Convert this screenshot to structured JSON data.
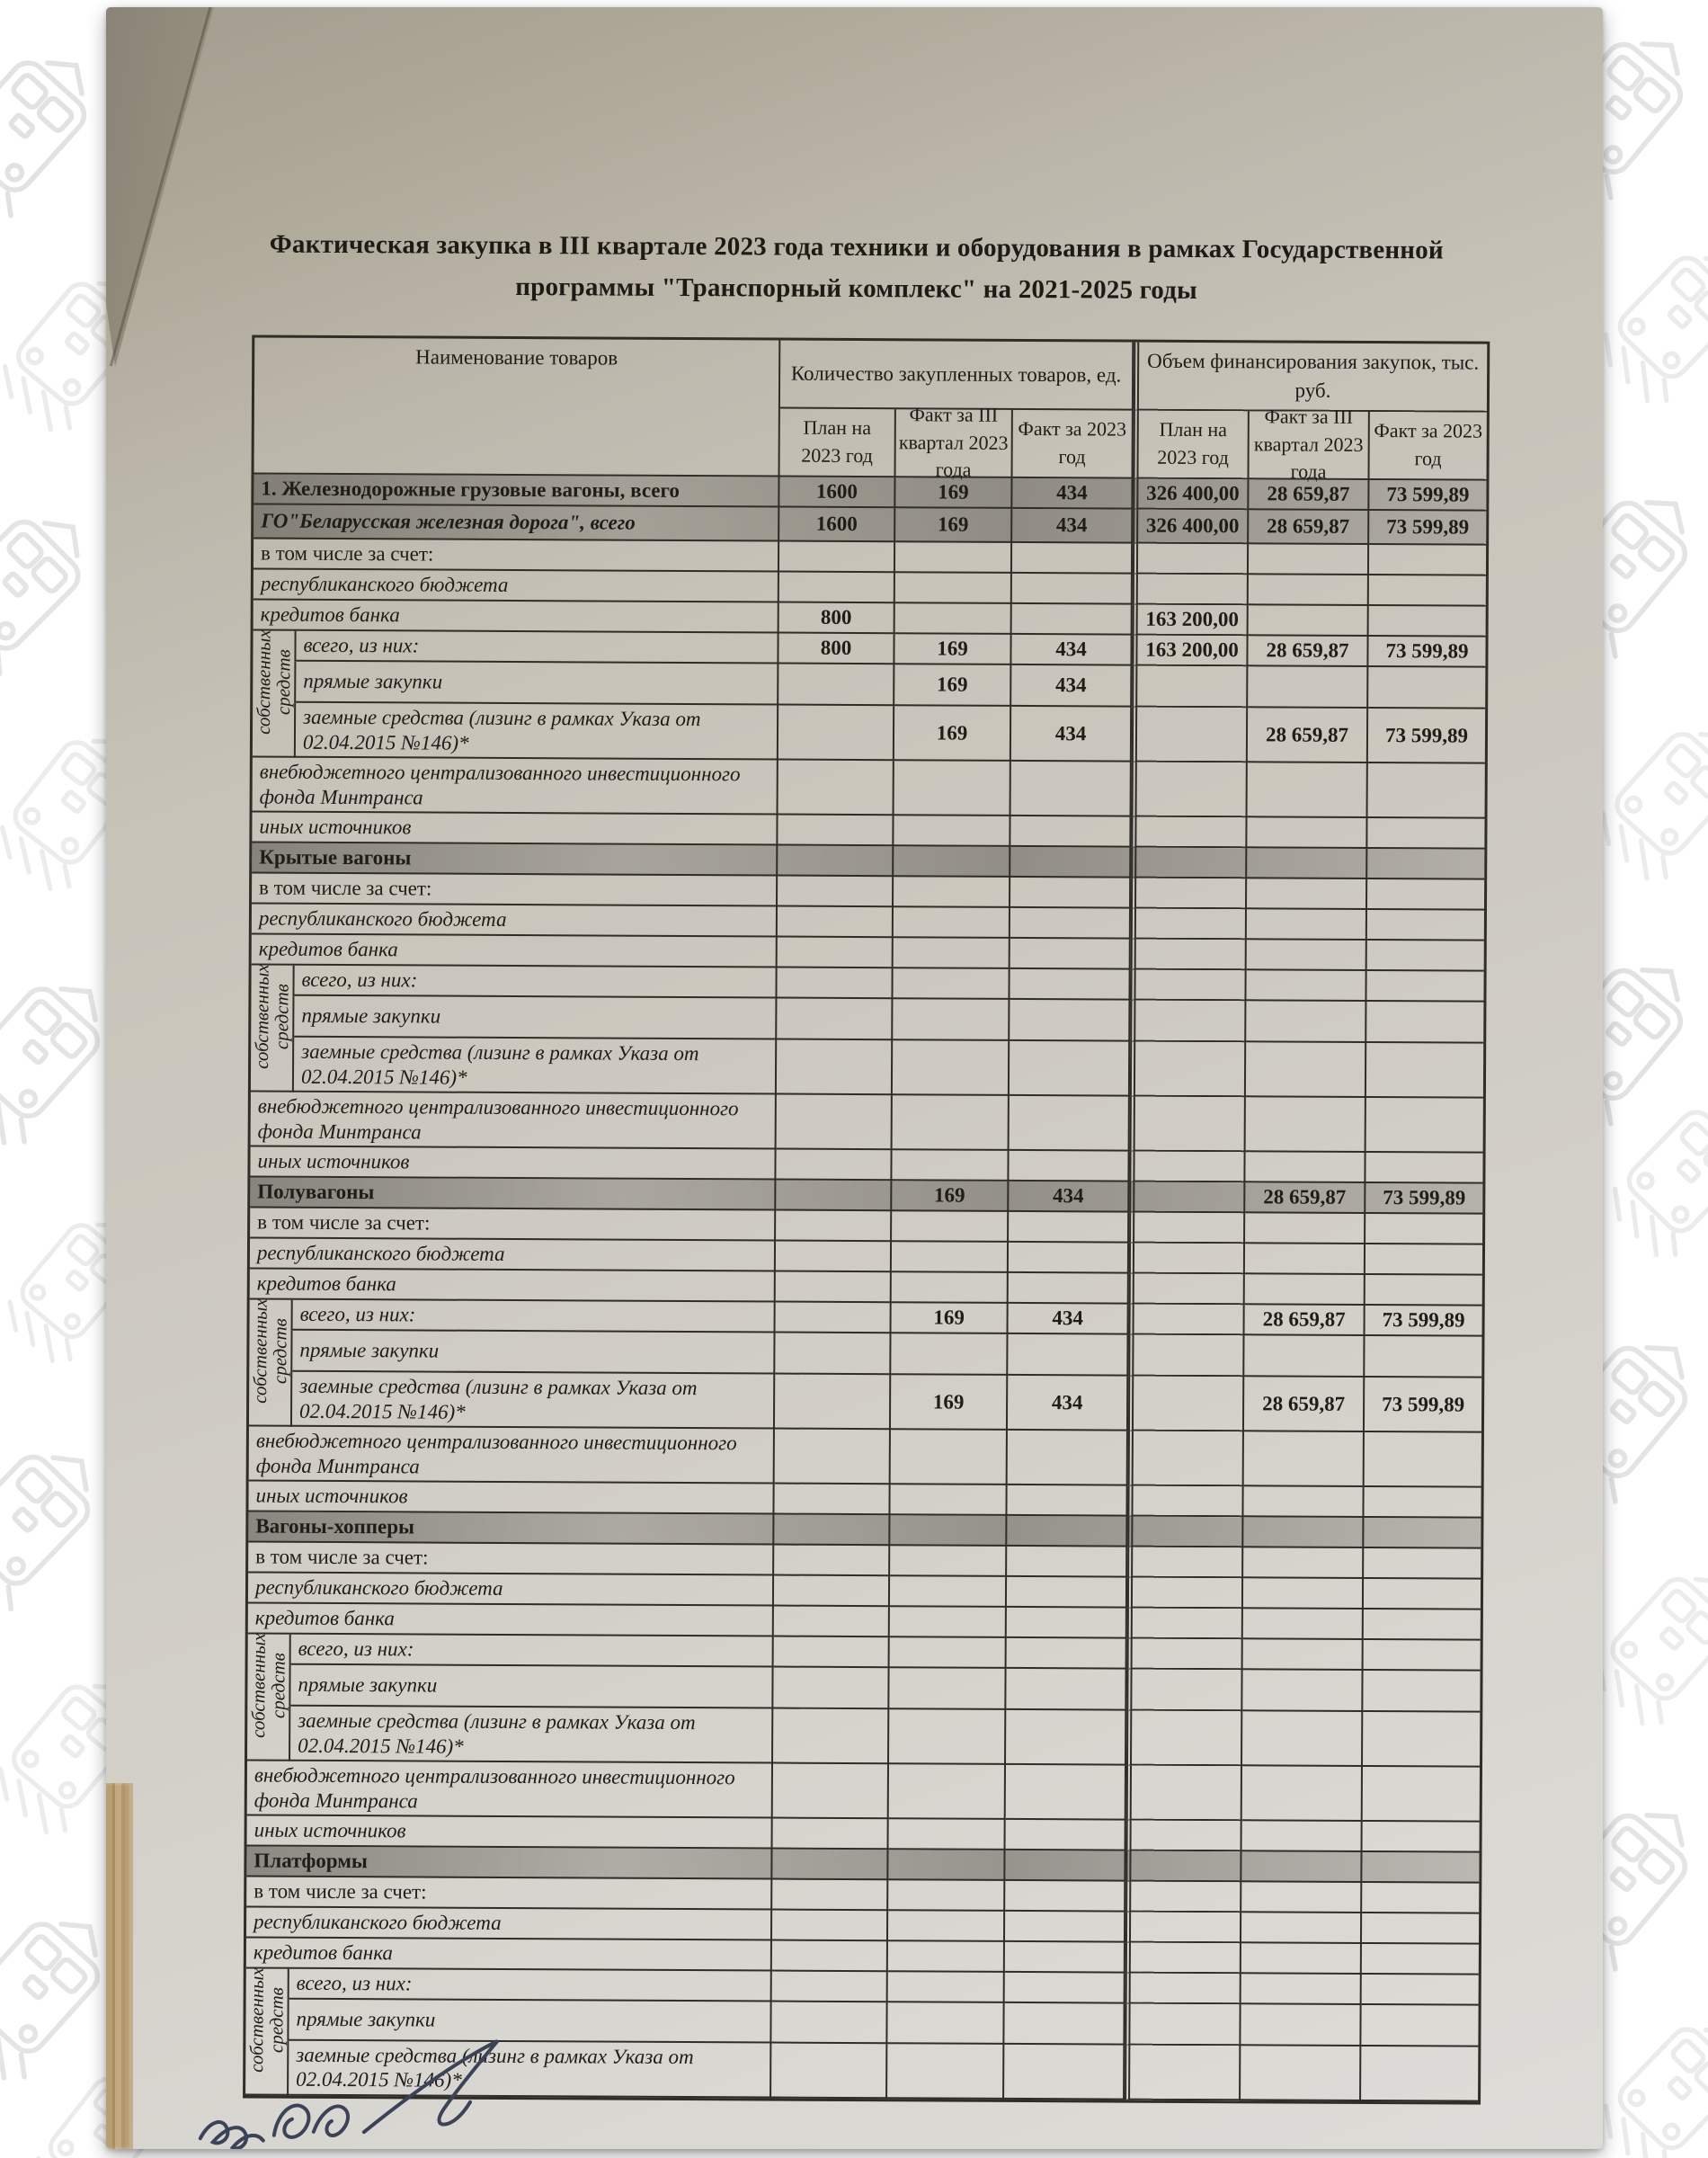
{
  "title": "Фактическая закупка в III квартале 2023 года техники и оборудования в рамках Государственной программы \"Транспорный комплекс\" на 2021-2025 годы",
  "table": {
    "header": {
      "name_col": "Наименование товаров",
      "qty_group": "Количество закупленных товаров, ед.",
      "fin_group": "Объем финансирования закупок, тыс. руб.",
      "subcols": [
        "План на 2023 год",
        "Факт за III квартал 2023 года",
        "Факт за 2023 год",
        "План на 2023 год",
        "Факт за III квартал 2023 года",
        "Факт за 2023 год"
      ]
    },
    "group_label": "собственных средств",
    "rows": [
      {
        "kind": "total",
        "label": "1. Железнодорожные грузовые вагоны, всего",
        "values": [
          "1600",
          "169",
          "434",
          "326 400,00",
          "28 659,87",
          "73 599,89"
        ]
      },
      {
        "kind": "total2",
        "label": "ГО\"Беларусская железная дорога\", всего",
        "values": [
          "1600",
          "169",
          "434",
          "326 400,00",
          "28 659,87",
          "73 599,89"
        ]
      },
      {
        "kind": "note",
        "label": "в том числе за счет:",
        "values": [
          "",
          "",
          "",
          "",
          "",
          ""
        ]
      },
      {
        "kind": "sub",
        "label": "республиканского бюджета",
        "values": [
          "",
          "",
          "",
          "",
          "",
          ""
        ]
      },
      {
        "kind": "sub",
        "label": "кредитов банка",
        "values": [
          "800",
          "",
          "",
          "163 200,00",
          "",
          ""
        ]
      },
      {
        "kind": "g1",
        "label": "всего, из них:",
        "values": [
          "800",
          "169",
          "434",
          "163 200,00",
          "28 659,87",
          "73 599,89"
        ]
      },
      {
        "kind": "g2",
        "label": "прямые закупки",
        "values": [
          "",
          "169",
          "434",
          "",
          "",
          ""
        ]
      },
      {
        "kind": "g3",
        "label": "заемные средства (лизинг в рамках Указа от 02.04.2015 №146)*",
        "values": [
          "",
          "169",
          "434",
          "",
          "28 659,87",
          "73 599,89"
        ]
      },
      {
        "kind": "sub2",
        "label": "внебюджетного централизованного инвестиционного фонда Минтранса",
        "values": [
          "",
          "",
          "",
          "",
          "",
          ""
        ]
      },
      {
        "kind": "subxs",
        "label": "иных источников",
        "values": [
          "",
          "",
          "",
          "",
          "",
          ""
        ]
      },
      {
        "kind": "section",
        "label": "Крытые вагоны",
        "values": [
          "",
          "",
          "",
          "",
          "",
          ""
        ]
      },
      {
        "kind": "note",
        "label": "в том числе за счет:",
        "values": [
          "",
          "",
          "",
          "",
          "",
          ""
        ]
      },
      {
        "kind": "sub",
        "label": "республиканского бюджета",
        "values": [
          "",
          "",
          "",
          "",
          "",
          ""
        ]
      },
      {
        "kind": "sub",
        "label": "кредитов банка",
        "values": [
          "",
          "",
          "",
          "",
          "",
          ""
        ]
      },
      {
        "kind": "g1",
        "label": "всего, из них:",
        "values": [
          "",
          "",
          "",
          "",
          "",
          ""
        ]
      },
      {
        "kind": "g2",
        "label": "прямые закупки",
        "values": [
          "",
          "",
          "",
          "",
          "",
          ""
        ]
      },
      {
        "kind": "g3",
        "label": "заемные средства (лизинг в рамках Указа от 02.04.2015 №146)*",
        "values": [
          "",
          "",
          "",
          "",
          "",
          ""
        ]
      },
      {
        "kind": "sub2",
        "label": "внебюджетного централизованного инвестиционного фонда Минтранса",
        "values": [
          "",
          "",
          "",
          "",
          "",
          ""
        ]
      },
      {
        "kind": "subxs",
        "label": "иных источников",
        "values": [
          "",
          "",
          "",
          "",
          "",
          ""
        ]
      },
      {
        "kind": "section",
        "label": "Полувагоны",
        "values": [
          "",
          "169",
          "434",
          "",
          "28 659,87",
          "73 599,89"
        ]
      },
      {
        "kind": "note",
        "label": "в том числе за счет:",
        "values": [
          "",
          "",
          "",
          "",
          "",
          ""
        ]
      },
      {
        "kind": "sub",
        "label": "республиканского бюджета",
        "values": [
          "",
          "",
          "",
          "",
          "",
          ""
        ]
      },
      {
        "kind": "sub",
        "label": "кредитов банка",
        "values": [
          "",
          "",
          "",
          "",
          "",
          ""
        ]
      },
      {
        "kind": "g1",
        "label": "всего, из них:",
        "values": [
          "",
          "169",
          "434",
          "",
          "28 659,87",
          "73 599,89"
        ]
      },
      {
        "kind": "g2",
        "label": "прямые закупки",
        "values": [
          "",
          "",
          "",
          "",
          "",
          ""
        ]
      },
      {
        "kind": "g3",
        "label": "заемные средства (лизинг в рамках Указа от 02.04.2015 №146)*",
        "values": [
          "",
          "169",
          "434",
          "",
          "28 659,87",
          "73 599,89"
        ]
      },
      {
        "kind": "sub2",
        "label": "внебюджетного централизованного инвестиционного фонда Минтранса",
        "values": [
          "",
          "",
          "",
          "",
          "",
          ""
        ]
      },
      {
        "kind": "subxs",
        "label": "иных источников",
        "values": [
          "",
          "",
          "",
          "",
          "",
          ""
        ]
      },
      {
        "kind": "section",
        "label": "Вагоны-хопперы",
        "values": [
          "",
          "",
          "",
          "",
          "",
          ""
        ]
      },
      {
        "kind": "note",
        "label": "в том числе за счет:",
        "values": [
          "",
          "",
          "",
          "",
          "",
          ""
        ]
      },
      {
        "kind": "sub",
        "label": "республиканского бюджета",
        "values": [
          "",
          "",
          "",
          "",
          "",
          ""
        ]
      },
      {
        "kind": "sub",
        "label": "кредитов банка",
        "values": [
          "",
          "",
          "",
          "",
          "",
          ""
        ]
      },
      {
        "kind": "g1",
        "label": "всего, из них:",
        "values": [
          "",
          "",
          "",
          "",
          "",
          ""
        ]
      },
      {
        "kind": "g2",
        "label": "прямые закупки",
        "values": [
          "",
          "",
          "",
          "",
          "",
          ""
        ]
      },
      {
        "kind": "g3",
        "label": "заемные средства (лизинг в рамках Указа от 02.04.2015 №146)*",
        "values": [
          "",
          "",
          "",
          "",
          "",
          ""
        ]
      },
      {
        "kind": "sub2",
        "label": "внебюджетного централизованного инвестиционного фонда Минтранса",
        "values": [
          "",
          "",
          "",
          "",
          "",
          ""
        ]
      },
      {
        "kind": "subxs",
        "label": "иных источников",
        "values": [
          "",
          "",
          "",
          "",
          "",
          ""
        ]
      },
      {
        "kind": "section",
        "label": "Платформы",
        "values": [
          "",
          "",
          "",
          "",
          "",
          ""
        ]
      },
      {
        "kind": "note",
        "label": "в том числе за счет:",
        "values": [
          "",
          "",
          "",
          "",
          "",
          ""
        ]
      },
      {
        "kind": "sub",
        "label": "республиканского бюджета",
        "values": [
          "",
          "",
          "",
          "",
          "",
          ""
        ]
      },
      {
        "kind": "sub",
        "label": "кредитов банка",
        "values": [
          "",
          "",
          "",
          "",
          "",
          ""
        ]
      },
      {
        "kind": "g1",
        "label": "всего, из них:",
        "values": [
          "",
          "",
          "",
          "",
          "",
          ""
        ]
      },
      {
        "kind": "g2",
        "label": "прямые закупки",
        "values": [
          "",
          "",
          "",
          "",
          "",
          ""
        ]
      },
      {
        "kind": "g3",
        "label": "заемные средства (лизинг в рамках Указа от 02.04.2015 №146)*",
        "values": [
          "",
          "",
          "",
          "",
          "",
          ""
        ]
      }
    ]
  },
  "footer": {
    "signature_icon": "handwritten-signature"
  },
  "colors": {
    "paper_top": "#a39d90",
    "paper_bottom": "#dedcd8",
    "table_line": "#2f2d28",
    "highlight_band": "rgba(98,95,88,0.55)",
    "signature_ink": "#3c4257",
    "wood": "#b89e73",
    "watermark": "#dedede"
  }
}
